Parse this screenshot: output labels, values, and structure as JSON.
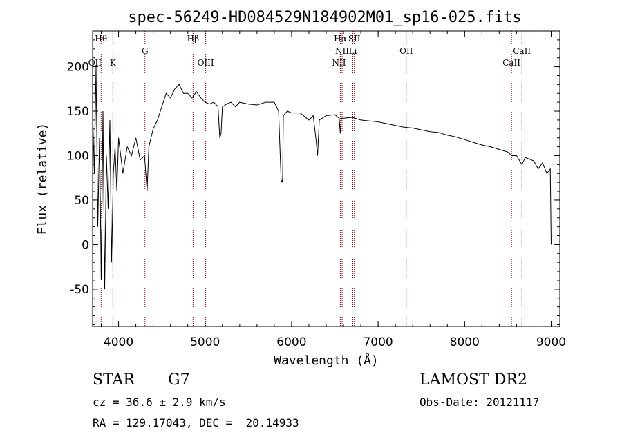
{
  "chart_data": {
    "type": "line",
    "title": "spec-56249-HD084529N184902M01_sp16-025.fits",
    "xlabel": "Wavelength (Å)",
    "ylabel": "Flux (relative)",
    "xlim": [
      3700,
      9100
    ],
    "ylim": [
      -92,
      240
    ],
    "x_ticks": [
      4000,
      5000,
      6000,
      7000,
      8000,
      9000
    ],
    "y_ticks": [
      -50,
      0,
      50,
      100,
      150,
      200
    ],
    "grid": false,
    "series": [
      {
        "x": [
          3700,
          3720,
          3740,
          3760,
          3780,
          3800,
          3820,
          3840,
          3860,
          3880,
          3900,
          3920,
          3940,
          3960,
          3980,
          4000,
          4050,
          4100,
          4150,
          4200,
          4250,
          4300,
          4330,
          4350,
          4400,
          4450,
          4500,
          4550,
          4600,
          4650,
          4700,
          4750,
          4800,
          4850,
          4900,
          4950,
          5000,
          5050,
          5100,
          5150,
          5170,
          5185,
          5200,
          5250,
          5300,
          5350,
          5400,
          5500,
          5600,
          5700,
          5800,
          5850,
          5880,
          5890,
          5896,
          5905,
          5950,
          6000,
          6100,
          6200,
          6250,
          6280,
          6300,
          6320,
          6400,
          6500,
          6550,
          6563,
          6575,
          6600,
          6700,
          6800,
          6900,
          7000,
          7100,
          7200,
          7300,
          7400,
          7500,
          7600,
          7700,
          7800,
          7900,
          8000,
          8100,
          8200,
          8300,
          8400,
          8500,
          8542,
          8600,
          8662,
          8700,
          8800,
          8850,
          8900,
          8950,
          8990,
          9000
        ],
        "y": [
          150,
          80,
          200,
          20,
          120,
          -40,
          150,
          -50,
          100,
          40,
          140,
          -20,
          80,
          110,
          60,
          120,
          80,
          110,
          100,
          120,
          95,
          100,
          60,
          110,
          130,
          140,
          155,
          170,
          165,
          175,
          180,
          170,
          170,
          165,
          172,
          165,
          160,
          158,
          160,
          155,
          120,
          125,
          155,
          158,
          160,
          155,
          160,
          158,
          157,
          160,
          160,
          150,
          70,
          72,
          70,
          145,
          150,
          148,
          148,
          140,
          145,
          120,
          100,
          140,
          145,
          146,
          142,
          125,
          142,
          142,
          143,
          140,
          139,
          138,
          136,
          134,
          132,
          131,
          129,
          127,
          126,
          123,
          121,
          118,
          115,
          112,
          110,
          107,
          104,
          100,
          100,
          90,
          98,
          94,
          85,
          92,
          80,
          85,
          0
        ]
      }
    ],
    "lines": [
      {
        "label": "Hθ",
        "x": 3798,
        "row": 0
      },
      {
        "label": "OII",
        "x": 3727,
        "row": 2
      },
      {
        "label": "K",
        "x": 3934,
        "row": 2
      },
      {
        "label": "G",
        "x": 4305,
        "row": 1
      },
      {
        "label": "Hβ",
        "x": 4861,
        "row": 0
      },
      {
        "label": "OIII",
        "x": 5007,
        "row": 2
      },
      {
        "label": "Hα",
        "x": 6563,
        "row": 0
      },
      {
        "label": "SII",
        "x": 6725,
        "row": 0
      },
      {
        "label": "NII",
        "x": 6584,
        "row": 1
      },
      {
        "label": "Li",
        "x": 6708,
        "row": 1
      },
      {
        "label": "NII",
        "x": 6548,
        "row": 2
      },
      {
        "label": "OII",
        "x": 7325,
        "row": 1
      },
      {
        "label": "CaII",
        "x": 8662,
        "row": 1
      },
      {
        "label": "CaII",
        "x": 8542,
        "row": 2
      }
    ]
  },
  "info": {
    "object_class": "STAR",
    "subclass": "G7",
    "survey": "LAMOST DR2",
    "redshift": "cz = 36.6 ± 2.9 km/s",
    "obs_date": "Obs-Date: 20121117",
    "coords": "RA = 129.17043, DEC =  20.14933"
  },
  "colors": {
    "line_marker": "#8b0000",
    "spectrum": "#000000"
  }
}
